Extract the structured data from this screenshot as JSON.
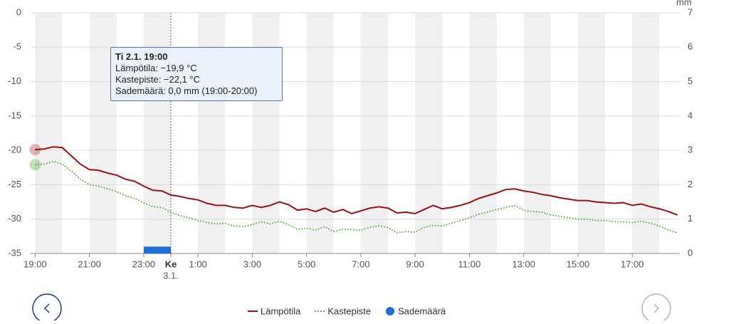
{
  "chart_data": {
    "type": "line",
    "y2label": "mm",
    "x": [
      "19:00",
      "19:20",
      "19:40",
      "20:00",
      "20:20",
      "20:40",
      "21:00",
      "21:20",
      "21:40",
      "22:00",
      "22:20",
      "22:40",
      "23:00",
      "23:20",
      "23:40",
      "0:00",
      "0:20",
      "0:40",
      "1:00",
      "1:20",
      "1:40",
      "2:00",
      "2:20",
      "2:40",
      "3:00",
      "3:20",
      "3:40",
      "4:00",
      "4:20",
      "4:40",
      "5:00",
      "5:20",
      "5:40",
      "6:00",
      "6:20",
      "6:40",
      "7:00",
      "7:20",
      "7:40",
      "8:00",
      "8:20",
      "8:40",
      "9:00",
      "9:20",
      "9:40",
      "10:00",
      "10:20",
      "10:40",
      "11:00",
      "11:20",
      "11:40",
      "12:00",
      "12:20",
      "12:40",
      "13:00",
      "13:20",
      "13:40",
      "14:00",
      "14:20",
      "14:40",
      "15:00",
      "15:20",
      "15:40",
      "16:00",
      "16:20",
      "16:40",
      "17:00",
      "17:20",
      "17:40",
      "18:00",
      "18:20",
      "18:40"
    ],
    "series": [
      {
        "name": "Lämpötila",
        "color": "#9b1010",
        "style": "solid",
        "values": [
          -19.9,
          -19.8,
          -19.5,
          -19.6,
          -20.8,
          -22.0,
          -22.8,
          -22.9,
          -23.3,
          -23.6,
          -24.2,
          -24.5,
          -25.2,
          -25.8,
          -25.9,
          -26.5,
          -26.7,
          -27.0,
          -27.2,
          -27.7,
          -28.0,
          -28.0,
          -28.3,
          -28.4,
          -28.0,
          -28.3,
          -28.0,
          -27.5,
          -27.9,
          -28.7,
          -28.5,
          -28.9,
          -28.4,
          -29.0,
          -28.6,
          -29.2,
          -28.8,
          -28.4,
          -28.2,
          -28.4,
          -29.1,
          -29.0,
          -29.2,
          -28.6,
          -28.0,
          -28.5,
          -28.3,
          -28.0,
          -27.6,
          -27.0,
          -26.6,
          -26.2,
          -25.7,
          -25.6,
          -25.9,
          -26.1,
          -26.4,
          -26.6,
          -26.9,
          -27.1,
          -27.3,
          -27.3,
          -27.5,
          -27.6,
          -27.7,
          -27.6,
          -28.0,
          -27.8,
          -28.2,
          -28.5,
          -28.9,
          -29.4
        ]
      },
      {
        "name": "Kastepiste",
        "color": "#3a9b1a",
        "style": "dotted",
        "values": [
          -22.1,
          -22.0,
          -21.6,
          -22.0,
          -23.0,
          -24.2,
          -25.0,
          -25.2,
          -25.6,
          -26.0,
          -26.6,
          -27.0,
          -27.6,
          -28.2,
          -28.3,
          -29.0,
          -29.5,
          -29.8,
          -30.2,
          -30.5,
          -30.7,
          -30.6,
          -31.0,
          -31.1,
          -30.8,
          -30.4,
          -30.7,
          -30.3,
          -30.8,
          -31.5,
          -31.3,
          -31.6,
          -31.1,
          -31.8,
          -31.5,
          -31.5,
          -31.6,
          -31.2,
          -31.0,
          -31.2,
          -32.0,
          -31.8,
          -31.9,
          -31.2,
          -30.9,
          -31.0,
          -30.6,
          -30.2,
          -29.8,
          -29.3,
          -29.0,
          -28.6,
          -28.3,
          -28.0,
          -28.7,
          -28.9,
          -29.0,
          -29.4,
          -29.6,
          -29.8,
          -30.0,
          -30.0,
          -30.2,
          -30.2,
          -30.4,
          -30.4,
          -30.5,
          -30.3,
          -30.6,
          -31.0,
          -31.6,
          -32.0
        ]
      },
      {
        "name": "Sademäärä",
        "color": "#1f6fd6",
        "type": "bar",
        "axis": "y2",
        "x": [
          "23:00"
        ],
        "values": [
          0.2
        ]
      }
    ],
    "xlim": [
      "18:50",
      "18:45"
    ],
    "xticks": [
      "19:00",
      "21:00",
      "23:00",
      {
        "value": "0:00",
        "label": "Ke",
        "sublabel": "3.1."
      },
      "1:00",
      "3:00",
      "5:00",
      "7:00",
      "9:00",
      "11:00",
      "13:00",
      "15:00",
      "17:00"
    ],
    "ylim": [
      -35,
      0
    ],
    "yticks": [
      0,
      -5,
      -10,
      -15,
      -20,
      -25,
      -30,
      -35
    ],
    "y2lim": [
      0,
      7
    ],
    "y2ticks": [
      0,
      1,
      2,
      3,
      4,
      5,
      6,
      7
    ],
    "grid": true,
    "tooltip": {
      "title": "Ti 2.1. 19:00",
      "lines": [
        "Lämpötila: −19,9 °C",
        "Kastepiste: −22,1 °C",
        "Sademäärä: 0,0 mm (19:00-20:00)"
      ]
    }
  }
}
